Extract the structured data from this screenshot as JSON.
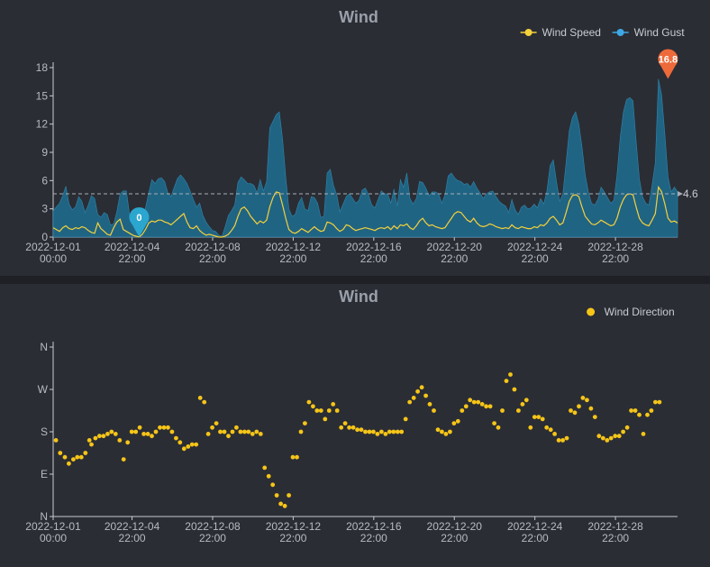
{
  "chart_data": [
    {
      "type": "area",
      "title": "Wind",
      "xlabel": "",
      "ylabel": "",
      "ylim": [
        0,
        18
      ],
      "y_ticks": [
        "0",
        "3",
        "6",
        "9",
        "12",
        "15",
        "18"
      ],
      "x_tick_labels": [
        [
          "2022-12-01",
          "00:00"
        ],
        [
          "2022-12-04",
          "22:00"
        ],
        [
          "2022-12-08",
          "22:00"
        ],
        [
          "2022-12-12",
          "22:00"
        ],
        [
          "2022-12-16",
          "22:00"
        ],
        [
          "2022-12-20",
          "22:00"
        ],
        [
          "2022-12-24",
          "22:00"
        ],
        [
          "2022-12-28",
          "22:00"
        ]
      ],
      "x_tick_days": [
        0,
        3.917,
        7.917,
        11.917,
        15.917,
        19.917,
        23.917,
        27.917
      ],
      "xlim_days": [
        0,
        31
      ],
      "legend_position": "top-right",
      "grid": false,
      "series": [
        {
          "name": "Wind Speed",
          "color": "#f5d13b",
          "values": [
            1.0,
            0.8,
            0.6,
            1.0,
            1.2,
            0.9,
            0.8,
            1.0,
            0.9,
            1.1,
            1.0,
            0.7,
            0.5,
            0.4,
            1.5,
            0.9,
            0.6,
            0.3,
            0.2,
            1.0,
            1.6,
            1.9,
            0.8,
            0.6,
            0.4,
            0.2,
            0.1,
            0.0,
            0.3,
            0.8,
            1.5,
            1.7,
            1.6,
            1.8,
            1.8,
            1.6,
            1.5,
            1.3,
            1.6,
            1.9,
            2.2,
            2.5,
            1.6,
            1.0,
            0.9,
            1.2,
            0.7,
            0.4,
            0.2,
            0.3,
            0.2,
            0.1,
            0.0,
            0.0,
            0.1,
            0.3,
            0.7,
            1.2,
            2.2,
            3.0,
            3.2,
            2.8,
            2.2,
            1.8,
            1.4,
            1.7,
            1.5,
            1.8,
            3.2,
            4.2,
            4.8,
            4.7,
            3.4,
            2.0,
            0.8,
            0.5,
            0.4,
            0.6,
            0.9,
            0.7,
            0.5,
            0.8,
            1.1,
            0.8,
            0.6,
            0.7,
            1.6,
            1.5,
            1.3,
            0.9,
            0.6,
            0.8,
            1.3,
            1.2,
            0.9,
            0.7,
            0.8,
            0.9,
            1.0,
            0.9,
            0.8,
            0.7,
            0.9,
            1.0,
            0.9,
            1.1,
            0.8,
            1.2,
            0.9,
            1.3,
            1.2,
            1.4,
            1.0,
            0.8,
            1.2,
            1.7,
            2.0,
            1.5,
            1.2,
            1.3,
            1.1,
            1.0,
            0.9,
            1.0,
            1.5,
            2.0,
            2.5,
            2.7,
            2.6,
            2.2,
            1.8,
            1.6,
            2.0,
            1.5,
            1.2,
            1.1,
            1.2,
            1.4,
            1.3,
            1.1,
            1.0,
            0.9,
            1.0,
            0.9,
            1.3,
            1.0,
            0.9,
            1.1,
            1.0,
            0.9,
            0.9,
            1.1,
            1.0,
            1.3,
            1.2,
            1.5,
            2.0,
            2.2,
            1.8,
            1.3,
            1.5,
            2.6,
            3.8,
            4.4,
            4.5,
            4.3,
            3.2,
            2.2,
            1.8,
            1.4,
            1.3,
            1.5,
            1.8,
            1.6,
            1.4,
            1.2,
            1.3,
            2.0,
            3.2,
            4.0,
            4.5,
            4.6,
            4.5,
            3.2,
            2.0,
            1.5,
            1.3,
            1.2,
            1.8,
            2.5,
            5.3,
            4.8,
            3.5,
            2.0,
            1.6,
            1.7,
            1.5
          ]
        },
        {
          "name": "Wind Gust",
          "color": "#3ea8e6",
          "values": [
            2.8,
            3.2,
            3.6,
            4.4,
            5.4,
            3.5,
            2.9,
            3.2,
            4.3,
            3.8,
            2.6,
            3.4,
            4.4,
            4.1,
            2.4,
            2.1,
            2.6,
            2.4,
            1.3,
            1.4,
            2.7,
            4.6,
            4.9,
            4.9,
            2.3,
            1.7,
            1.6,
            0.5,
            2.3,
            3.1,
            4.7,
            6.1,
            5.7,
            6.2,
            6.3,
            5.9,
            4.7,
            4.3,
            5.3,
            6.2,
            6.6,
            6.2,
            5.7,
            4.9,
            4.0,
            3.2,
            3.6,
            2.3,
            1.6,
            1.1,
            0.7,
            0.6,
            0.2,
            0.1,
            1.1,
            2.3,
            2.8,
            3.4,
            5.8,
            6.4,
            6.1,
            5.7,
            5.7,
            5.5,
            4.7,
            6.1,
            4.9,
            5.9,
            11.6,
            12.3,
            13.0,
            13.3,
            10.4,
            6.4,
            3.0,
            2.2,
            2.4,
            3.6,
            4.2,
            3.0,
            2.8,
            4.3,
            4.2,
            3.6,
            2.1,
            2.2,
            6.8,
            7.2,
            5.5,
            4.5,
            2.7,
            3.5,
            4.3,
            4.6,
            4.1,
            3.6,
            3.9,
            5.0,
            5.2,
            4.5,
            3.4,
            3.1,
            4.0,
            4.9,
            4.6,
            4.6,
            3.6,
            5.1,
            3.3,
            6.1,
            5.3,
            6.8,
            4.1,
            3.5,
            4.1,
            5.9,
            5.8,
            5.2,
            4.4,
            4.8,
            4.8,
            4.6,
            3.6,
            4.5,
            6.5,
            6.8,
            6.3,
            6.0,
            5.9,
            5.6,
            5.7,
            5.3,
            5.9,
            5.2,
            4.7,
            4.1,
            4.6,
            4.8,
            4.9,
            4.3,
            3.8,
            3.5,
            3.3,
            2.6,
            4.0,
            2.9,
            2.4,
            3.2,
            3.4,
            3.0,
            3.1,
            3.5,
            3.1,
            4.1,
            3.5,
            4.9,
            7.6,
            8.2,
            5.9,
            3.8,
            4.6,
            7.9,
            11.3,
            12.7,
            13.3,
            12.0,
            9.6,
            6.6,
            4.8,
            3.6,
            3.4,
            4.0,
            5.3,
            4.8,
            4.2,
            3.6,
            3.9,
            6.6,
            10.6,
            13.3,
            14.6,
            14.8,
            14.5,
            10.2,
            6.2,
            4.3,
            3.6,
            3.4,
            5.5,
            7.9,
            16.8,
            15.1,
            10.9,
            6.4,
            4.8,
            5.3,
            4.8
          ]
        }
      ],
      "annotations": {
        "max_marker": {
          "label": "16.8",
          "series": "Wind Gust",
          "index": 193,
          "value": 16.8,
          "color": "#ee6a3a"
        },
        "min_marker": {
          "label": "0",
          "series": "Wind Speed",
          "index": 27,
          "value": 0,
          "color": "#2ba6cf"
        },
        "average_line": {
          "label": "4.6",
          "value": 4.6
        }
      }
    },
    {
      "type": "scatter",
      "title": "Wind",
      "xlabel": "",
      "ylabel": "",
      "ylim": [
        0,
        4
      ],
      "y_ticks": [
        "N",
        "E",
        "S",
        "W",
        "N"
      ],
      "x_tick_labels": [
        [
          "2022-12-01",
          "00:00"
        ],
        [
          "2022-12-04",
          "22:00"
        ],
        [
          "2022-12-08",
          "22:00"
        ],
        [
          "2022-12-12",
          "22:00"
        ],
        [
          "2022-12-16",
          "22:00"
        ],
        [
          "2022-12-20",
          "22:00"
        ],
        [
          "2022-12-24",
          "22:00"
        ],
        [
          "2022-12-28",
          "22:00"
        ]
      ],
      "x_tick_days": [
        0,
        3.917,
        7.917,
        11.917,
        15.917,
        19.917,
        23.917,
        27.917
      ],
      "xlim_days": [
        0,
        31
      ],
      "legend_position": "top-right",
      "grid": false,
      "series": [
        {
          "name": "Wind Direction",
          "color": "#f5c518",
          "points": [
            [
              0.14,
              1.8
            ],
            [
              0.35,
              1.5
            ],
            [
              0.58,
              1.4
            ],
            [
              0.78,
              1.25
            ],
            [
              1.0,
              1.35
            ],
            [
              1.2,
              1.4
            ],
            [
              1.4,
              1.4
            ],
            [
              1.6,
              1.5
            ],
            [
              1.8,
              1.8
            ],
            [
              1.9,
              1.7
            ],
            [
              2.1,
              1.85
            ],
            [
              2.3,
              1.9
            ],
            [
              2.5,
              1.9
            ],
            [
              2.7,
              1.95
            ],
            [
              2.9,
              2.0
            ],
            [
              3.1,
              1.95
            ],
            [
              3.3,
              1.8
            ],
            [
              3.5,
              1.35
            ],
            [
              3.7,
              1.75
            ],
            [
              3.9,
              2.0
            ],
            [
              4.1,
              2.0
            ],
            [
              4.3,
              2.1
            ],
            [
              4.5,
              1.95
            ],
            [
              4.7,
              1.95
            ],
            [
              4.9,
              1.9
            ],
            [
              5.1,
              2.0
            ],
            [
              5.3,
              2.1
            ],
            [
              5.5,
              2.1
            ],
            [
              5.7,
              2.1
            ],
            [
              5.9,
              2.0
            ],
            [
              6.1,
              1.85
            ],
            [
              6.3,
              1.75
            ],
            [
              6.5,
              1.6
            ],
            [
              6.7,
              1.65
            ],
            [
              6.9,
              1.7
            ],
            [
              7.1,
              1.7
            ],
            [
              7.3,
              2.8
            ],
            [
              7.5,
              2.7
            ],
            [
              7.7,
              1.95
            ],
            [
              7.9,
              2.1
            ],
            [
              8.1,
              2.2
            ],
            [
              8.3,
              2.0
            ],
            [
              8.5,
              2.0
            ],
            [
              8.7,
              1.9
            ],
            [
              8.9,
              2.0
            ],
            [
              9.1,
              2.1
            ],
            [
              9.3,
              2.0
            ],
            [
              9.5,
              2.0
            ],
            [
              9.7,
              2.0
            ],
            [
              9.9,
              1.95
            ],
            [
              10.1,
              2.0
            ],
            [
              10.3,
              1.95
            ],
            [
              10.5,
              1.15
            ],
            [
              10.7,
              0.95
            ],
            [
              10.9,
              0.75
            ],
            [
              11.1,
              0.5
            ],
            [
              11.3,
              0.3
            ],
            [
              11.5,
              0.25
            ],
            [
              11.7,
              0.5
            ],
            [
              11.9,
              1.4
            ],
            [
              12.1,
              1.4
            ],
            [
              12.3,
              2.0
            ],
            [
              12.5,
              2.2
            ],
            [
              12.7,
              2.7
            ],
            [
              12.9,
              2.6
            ],
            [
              13.1,
              2.5
            ],
            [
              13.3,
              2.5
            ],
            [
              13.5,
              2.3
            ],
            [
              13.7,
              2.5
            ],
            [
              13.9,
              2.65
            ],
            [
              14.1,
              2.5
            ],
            [
              14.3,
              2.1
            ],
            [
              14.5,
              2.2
            ],
            [
              14.7,
              2.1
            ],
            [
              14.9,
              2.1
            ],
            [
              15.1,
              2.05
            ],
            [
              15.3,
              2.05
            ],
            [
              15.5,
              2.0
            ],
            [
              15.7,
              2.0
            ],
            [
              15.9,
              2.0
            ],
            [
              16.1,
              1.95
            ],
            [
              16.3,
              2.0
            ],
            [
              16.5,
              1.95
            ],
            [
              16.7,
              2.0
            ],
            [
              16.9,
              2.0
            ],
            [
              17.1,
              2.0
            ],
            [
              17.3,
              2.0
            ],
            [
              17.5,
              2.3
            ],
            [
              17.7,
              2.7
            ],
            [
              17.9,
              2.8
            ],
            [
              18.1,
              2.95
            ],
            [
              18.3,
              3.05
            ],
            [
              18.5,
              2.85
            ],
            [
              18.7,
              2.65
            ],
            [
              18.9,
              2.5
            ],
            [
              19.1,
              2.05
            ],
            [
              19.3,
              2.0
            ],
            [
              19.5,
              1.95
            ],
            [
              19.7,
              2.0
            ],
            [
              19.9,
              2.2
            ],
            [
              20.1,
              2.25
            ],
            [
              20.3,
              2.5
            ],
            [
              20.5,
              2.6
            ],
            [
              20.7,
              2.75
            ],
            [
              20.9,
              2.7
            ],
            [
              21.1,
              2.7
            ],
            [
              21.3,
              2.65
            ],
            [
              21.5,
              2.6
            ],
            [
              21.7,
              2.6
            ],
            [
              21.9,
              2.2
            ],
            [
              22.1,
              2.1
            ],
            [
              22.3,
              2.5
            ],
            [
              22.5,
              3.2
            ],
            [
              22.7,
              3.35
            ],
            [
              22.9,
              3.0
            ],
            [
              23.1,
              2.5
            ],
            [
              23.3,
              2.65
            ],
            [
              23.5,
              2.75
            ],
            [
              23.7,
              2.1
            ],
            [
              23.9,
              2.35
            ],
            [
              24.1,
              2.35
            ],
            [
              24.3,
              2.3
            ],
            [
              24.5,
              2.1
            ],
            [
              24.7,
              2.05
            ],
            [
              24.9,
              1.95
            ],
            [
              25.1,
              1.8
            ],
            [
              25.3,
              1.8
            ],
            [
              25.5,
              1.85
            ],
            [
              25.7,
              2.5
            ],
            [
              25.9,
              2.45
            ],
            [
              26.1,
              2.6
            ],
            [
              26.3,
              2.8
            ],
            [
              26.5,
              2.75
            ],
            [
              26.7,
              2.55
            ],
            [
              26.9,
              2.35
            ],
            [
              27.1,
              1.9
            ],
            [
              27.3,
              1.85
            ],
            [
              27.5,
              1.8
            ],
            [
              27.7,
              1.85
            ],
            [
              27.9,
              1.9
            ],
            [
              28.1,
              1.9
            ],
            [
              28.3,
              2.0
            ],
            [
              28.5,
              2.1
            ],
            [
              28.7,
              2.5
            ],
            [
              28.9,
              2.5
            ],
            [
              29.1,
              2.4
            ],
            [
              29.3,
              1.95
            ],
            [
              29.5,
              2.4
            ],
            [
              29.7,
              2.5
            ],
            [
              29.9,
              2.7
            ],
            [
              30.1,
              2.7
            ]
          ]
        }
      ]
    }
  ]
}
